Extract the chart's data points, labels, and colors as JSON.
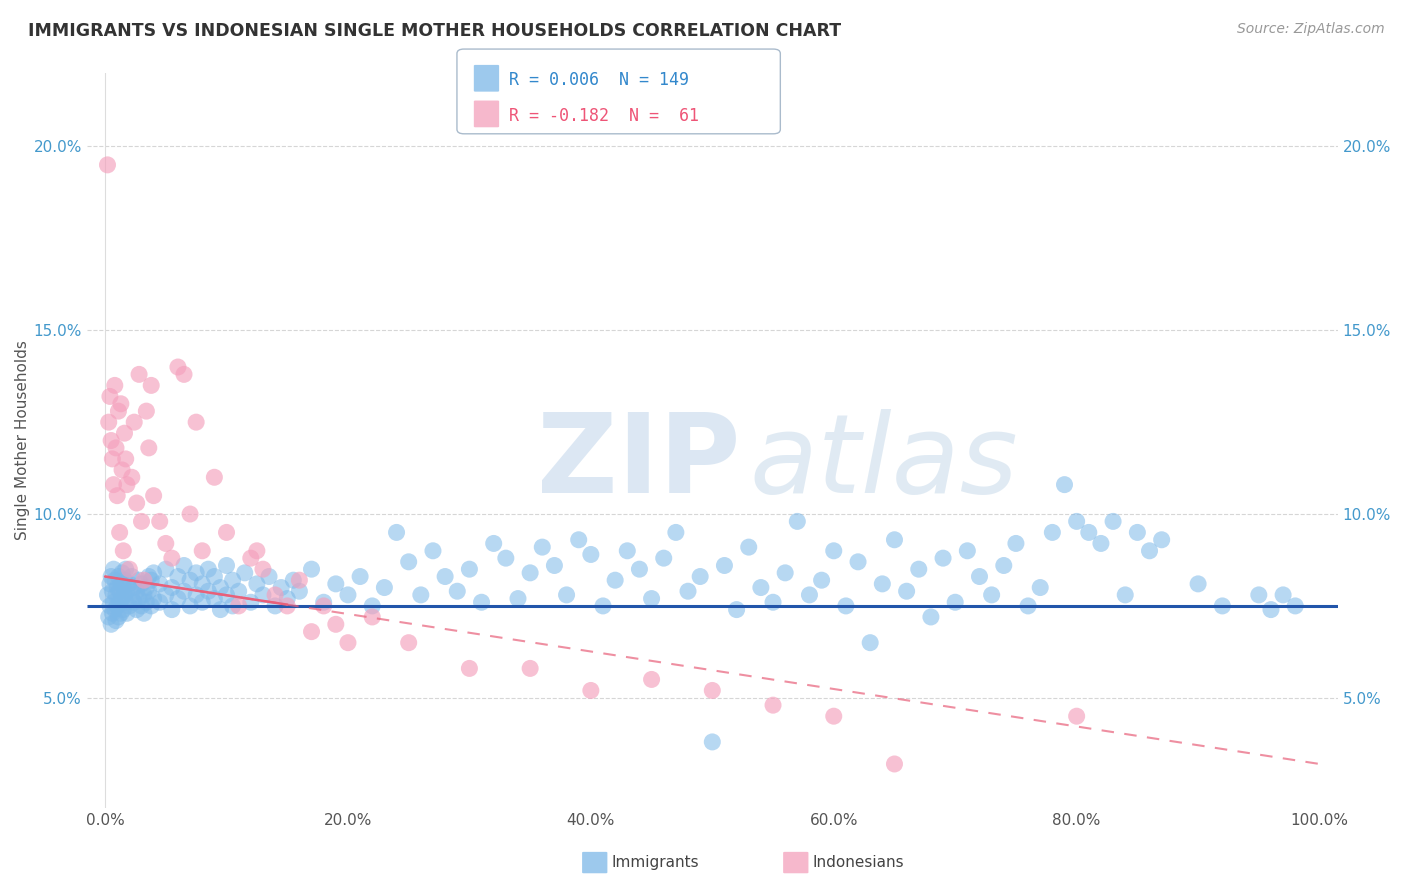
{
  "title": "IMMIGRANTS VS INDONESIAN SINGLE MOTHER HOUSEHOLDS CORRELATION CHART",
  "source": "Source: ZipAtlas.com",
  "ylabel": "Single Mother Households",
  "x_ticks": [
    0.0,
    20.0,
    40.0,
    60.0,
    80.0,
    100.0
  ],
  "y_ticks": [
    5.0,
    10.0,
    15.0,
    20.0
  ],
  "xlim": [
    -1.5,
    101.5
  ],
  "ylim": [
    2.0,
    22.0
  ],
  "blue_R": "0.006",
  "blue_N": "149",
  "pink_R": "-0.182",
  "pink_N": "61",
  "blue_color": "#7DB8E8",
  "pink_color": "#F4A0BC",
  "blue_line_color": "#2255AA",
  "pink_line_color": "#E8607A",
  "blue_line_y": 7.5,
  "pink_solid_x1": 0,
  "pink_solid_y1": 8.3,
  "pink_solid_x2": 15,
  "pink_solid_y2": 7.2,
  "pink_dash_x1": 15,
  "pink_dash_y1": 7.2,
  "pink_dash_x2": 100,
  "pink_dash_y2": 3.2,
  "watermark_zip_color": "#C8D8E8",
  "watermark_atlas_color": "#A8C8E0",
  "blue_dots": [
    [
      0.2,
      7.8
    ],
    [
      0.3,
      7.2
    ],
    [
      0.4,
      8.1
    ],
    [
      0.4,
      7.5
    ],
    [
      0.5,
      8.3
    ],
    [
      0.5,
      7.0
    ],
    [
      0.6,
      7.9
    ],
    [
      0.6,
      7.3
    ],
    [
      0.7,
      8.5
    ],
    [
      0.7,
      7.6
    ],
    [
      0.8,
      8.2
    ],
    [
      0.8,
      7.4
    ],
    [
      0.9,
      7.8
    ],
    [
      0.9,
      7.1
    ],
    [
      1.0,
      8.0
    ],
    [
      1.0,
      7.5
    ],
    [
      1.1,
      8.3
    ],
    [
      1.1,
      7.2
    ],
    [
      1.2,
      7.9
    ],
    [
      1.2,
      7.6
    ],
    [
      1.3,
      8.1
    ],
    [
      1.3,
      7.3
    ],
    [
      1.4,
      8.4
    ],
    [
      1.4,
      7.7
    ],
    [
      1.5,
      8.0
    ],
    [
      1.5,
      7.4
    ],
    [
      1.6,
      8.2
    ],
    [
      1.6,
      7.8
    ],
    [
      1.7,
      7.6
    ],
    [
      1.7,
      8.5
    ],
    [
      1.8,
      7.9
    ],
    [
      1.8,
      7.3
    ],
    [
      2.0,
      8.1
    ],
    [
      2.0,
      7.5
    ],
    [
      2.2,
      7.8
    ],
    [
      2.2,
      8.3
    ],
    [
      2.4,
      7.6
    ],
    [
      2.4,
      8.0
    ],
    [
      2.6,
      7.4
    ],
    [
      2.6,
      7.9
    ],
    [
      2.8,
      8.2
    ],
    [
      2.8,
      7.7
    ],
    [
      3.0,
      7.5
    ],
    [
      3.0,
      8.1
    ],
    [
      3.2,
      7.8
    ],
    [
      3.2,
      7.3
    ],
    [
      3.4,
      8.0
    ],
    [
      3.4,
      7.6
    ],
    [
      3.6,
      8.3
    ],
    [
      3.6,
      7.9
    ],
    [
      3.8,
      7.5
    ],
    [
      3.8,
      8.2
    ],
    [
      4.0,
      7.7
    ],
    [
      4.0,
      8.4
    ],
    [
      4.5,
      7.6
    ],
    [
      4.5,
      8.1
    ],
    [
      5.0,
      7.8
    ],
    [
      5.0,
      8.5
    ],
    [
      5.5,
      7.4
    ],
    [
      5.5,
      8.0
    ],
    [
      6.0,
      7.7
    ],
    [
      6.0,
      8.3
    ],
    [
      6.5,
      7.9
    ],
    [
      6.5,
      8.6
    ],
    [
      7.0,
      7.5
    ],
    [
      7.0,
      8.2
    ],
    [
      7.5,
      7.8
    ],
    [
      7.5,
      8.4
    ],
    [
      8.0,
      7.6
    ],
    [
      8.0,
      8.1
    ],
    [
      8.5,
      7.9
    ],
    [
      8.5,
      8.5
    ],
    [
      9.0,
      7.7
    ],
    [
      9.0,
      8.3
    ],
    [
      9.5,
      7.4
    ],
    [
      9.5,
      8.0
    ],
    [
      10.0,
      7.8
    ],
    [
      10.0,
      8.6
    ],
    [
      10.5,
      7.5
    ],
    [
      10.5,
      8.2
    ],
    [
      11.0,
      7.9
    ],
    [
      11.5,
      8.4
    ],
    [
      12.0,
      7.6
    ],
    [
      12.5,
      8.1
    ],
    [
      13.0,
      7.8
    ],
    [
      13.5,
      8.3
    ],
    [
      14.0,
      7.5
    ],
    [
      14.5,
      8.0
    ],
    [
      15.0,
      7.7
    ],
    [
      15.5,
      8.2
    ],
    [
      16.0,
      7.9
    ],
    [
      17.0,
      8.5
    ],
    [
      18.0,
      7.6
    ],
    [
      19.0,
      8.1
    ],
    [
      20.0,
      7.8
    ],
    [
      21.0,
      8.3
    ],
    [
      22.0,
      7.5
    ],
    [
      23.0,
      8.0
    ],
    [
      24.0,
      9.5
    ],
    [
      25.0,
      8.7
    ],
    [
      26.0,
      7.8
    ],
    [
      27.0,
      9.0
    ],
    [
      28.0,
      8.3
    ],
    [
      29.0,
      7.9
    ],
    [
      30.0,
      8.5
    ],
    [
      31.0,
      7.6
    ],
    [
      32.0,
      9.2
    ],
    [
      33.0,
      8.8
    ],
    [
      34.0,
      7.7
    ],
    [
      35.0,
      8.4
    ],
    [
      36.0,
      9.1
    ],
    [
      37.0,
      8.6
    ],
    [
      38.0,
      7.8
    ],
    [
      39.0,
      9.3
    ],
    [
      40.0,
      8.9
    ],
    [
      41.0,
      7.5
    ],
    [
      42.0,
      8.2
    ],
    [
      43.0,
      9.0
    ],
    [
      44.0,
      8.5
    ],
    [
      45.0,
      7.7
    ],
    [
      46.0,
      8.8
    ],
    [
      47.0,
      9.5
    ],
    [
      48.0,
      7.9
    ],
    [
      49.0,
      8.3
    ],
    [
      50.0,
      3.8
    ],
    [
      51.0,
      8.6
    ],
    [
      52.0,
      7.4
    ],
    [
      53.0,
      9.1
    ],
    [
      54.0,
      8.0
    ],
    [
      55.0,
      7.6
    ],
    [
      56.0,
      8.4
    ],
    [
      57.0,
      9.8
    ],
    [
      58.0,
      7.8
    ],
    [
      59.0,
      8.2
    ],
    [
      60.0,
      9.0
    ],
    [
      61.0,
      7.5
    ],
    [
      62.0,
      8.7
    ],
    [
      63.0,
      6.5
    ],
    [
      64.0,
      8.1
    ],
    [
      65.0,
      9.3
    ],
    [
      66.0,
      7.9
    ],
    [
      67.0,
      8.5
    ],
    [
      68.0,
      7.2
    ],
    [
      69.0,
      8.8
    ],
    [
      70.0,
      7.6
    ],
    [
      71.0,
      9.0
    ],
    [
      72.0,
      8.3
    ],
    [
      73.0,
      7.8
    ],
    [
      74.0,
      8.6
    ],
    [
      75.0,
      9.2
    ],
    [
      76.0,
      7.5
    ],
    [
      77.0,
      8.0
    ],
    [
      78.0,
      9.5
    ],
    [
      79.0,
      10.8
    ],
    [
      80.0,
      9.8
    ],
    [
      81.0,
      9.5
    ],
    [
      82.0,
      9.2
    ],
    [
      83.0,
      9.8
    ],
    [
      84.0,
      7.8
    ],
    [
      85.0,
      9.5
    ],
    [
      86.0,
      9.0
    ],
    [
      87.0,
      9.3
    ],
    [
      90.0,
      8.1
    ],
    [
      92.0,
      7.5
    ],
    [
      95.0,
      7.8
    ],
    [
      96.0,
      7.4
    ],
    [
      97.0,
      7.8
    ],
    [
      98.0,
      7.5
    ]
  ],
  "pink_dots": [
    [
      0.2,
      19.5
    ],
    [
      0.3,
      12.5
    ],
    [
      0.4,
      13.2
    ],
    [
      0.5,
      12.0
    ],
    [
      0.6,
      11.5
    ],
    [
      0.7,
      10.8
    ],
    [
      0.8,
      13.5
    ],
    [
      0.9,
      11.8
    ],
    [
      1.0,
      10.5
    ],
    [
      1.1,
      12.8
    ],
    [
      1.2,
      9.5
    ],
    [
      1.3,
      13.0
    ],
    [
      1.4,
      11.2
    ],
    [
      1.5,
      9.0
    ],
    [
      1.6,
      12.2
    ],
    [
      1.7,
      11.5
    ],
    [
      1.8,
      10.8
    ],
    [
      2.0,
      8.5
    ],
    [
      2.2,
      11.0
    ],
    [
      2.4,
      12.5
    ],
    [
      2.6,
      10.3
    ],
    [
      2.8,
      13.8
    ],
    [
      3.0,
      9.8
    ],
    [
      3.2,
      8.2
    ],
    [
      3.4,
      12.8
    ],
    [
      3.6,
      11.8
    ],
    [
      3.8,
      13.5
    ],
    [
      4.0,
      10.5
    ],
    [
      4.5,
      9.8
    ],
    [
      5.0,
      9.2
    ],
    [
      5.5,
      8.8
    ],
    [
      6.0,
      14.0
    ],
    [
      6.5,
      13.8
    ],
    [
      7.0,
      10.0
    ],
    [
      7.5,
      12.5
    ],
    [
      8.0,
      9.0
    ],
    [
      9.0,
      11.0
    ],
    [
      10.0,
      9.5
    ],
    [
      11.0,
      7.5
    ],
    [
      12.0,
      8.8
    ],
    [
      12.5,
      9.0
    ],
    [
      13.0,
      8.5
    ],
    [
      14.0,
      7.8
    ],
    [
      15.0,
      7.5
    ],
    [
      16.0,
      8.2
    ],
    [
      17.0,
      6.8
    ],
    [
      18.0,
      7.5
    ],
    [
      19.0,
      7.0
    ],
    [
      20.0,
      6.5
    ],
    [
      22.0,
      7.2
    ],
    [
      25.0,
      6.5
    ],
    [
      30.0,
      5.8
    ],
    [
      35.0,
      5.8
    ],
    [
      40.0,
      5.2
    ],
    [
      45.0,
      5.5
    ],
    [
      50.0,
      5.2
    ],
    [
      55.0,
      4.8
    ],
    [
      60.0,
      4.5
    ],
    [
      65.0,
      3.2
    ],
    [
      80.0,
      4.5
    ]
  ]
}
